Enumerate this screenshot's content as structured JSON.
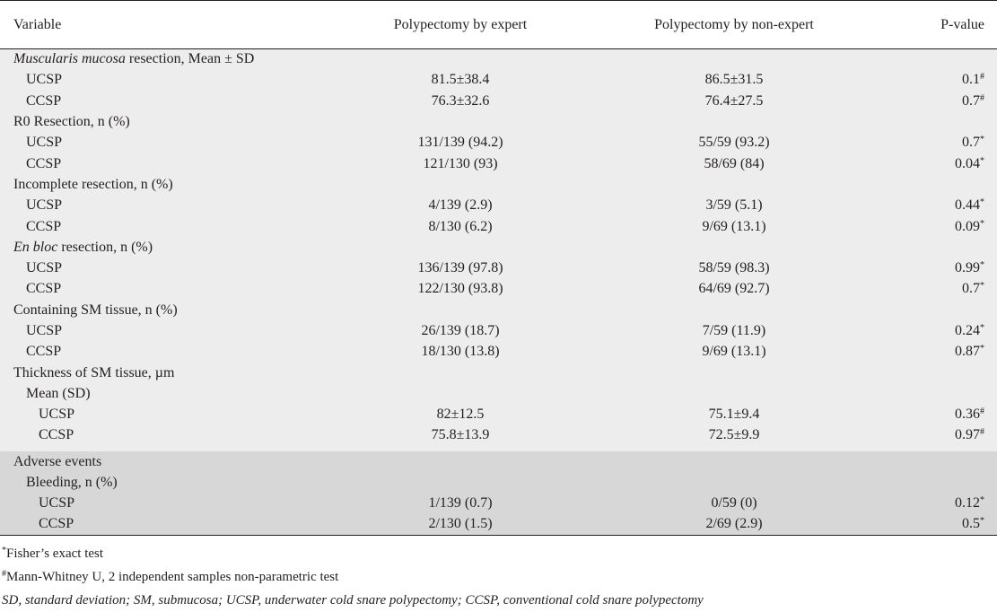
{
  "table": {
    "headers": [
      "Variable",
      "Polypectomy by expert",
      "Polypectomy by non-expert",
      "P-value"
    ],
    "outcome_sections": [
      {
        "title_italic": "Muscularis mucosa",
        "title_rest": " resection, Mean ± SD",
        "rows": [
          {
            "label": "UCSP",
            "expert": "81.5±38.4",
            "nonexpert": "86.5±31.5",
            "p": "0.1",
            "mark": "#"
          },
          {
            "label": "CCSP",
            "expert": "76.3±32.6",
            "nonexpert": "76.4±27.5",
            "p": "0.7",
            "mark": "#"
          }
        ]
      },
      {
        "title_italic": "",
        "title_rest": "R0 Resection, n (%)",
        "rows": [
          {
            "label": "UCSP",
            "expert": "131/139 (94.2)",
            "nonexpert": "55/59 (93.2)",
            "p": "0.7",
            "mark": "*"
          },
          {
            "label": "CCSP",
            "expert": "121/130 (93)",
            "nonexpert": "58/69 (84)",
            "p": "0.04",
            "mark": "*"
          }
        ]
      },
      {
        "title_italic": "",
        "title_rest": "Incomplete resection, n (%)",
        "rows": [
          {
            "label": "UCSP",
            "expert": "4/139 (2.9)",
            "nonexpert": "3/59 (5.1)",
            "p": "0.44",
            "mark": "*"
          },
          {
            "label": "CCSP",
            "expert": "8/130 (6.2)",
            "nonexpert": "9/69 (13.1)",
            "p": "0.09",
            "mark": "*"
          }
        ]
      },
      {
        "title_italic": "En bloc",
        "title_rest": " resection, n (%)",
        "rows": [
          {
            "label": "UCSP",
            "expert": "136/139 (97.8)",
            "nonexpert": "58/59 (98.3)",
            "p": "0.99",
            "mark": "*"
          },
          {
            "label": "CCSP",
            "expert": "122/130 (93.8)",
            "nonexpert": "64/69 (92.7)",
            "p": "0.7",
            "mark": "*"
          }
        ]
      },
      {
        "title_italic": "",
        "title_rest": "Containing SM tissue, n (%)",
        "rows": [
          {
            "label": "UCSP",
            "expert": "26/139 (18.7)",
            "nonexpert": "7/59 (11.9)",
            "p": "0.24",
            "mark": "*"
          },
          {
            "label": "CCSP",
            "expert": "18/130 (13.8)",
            "nonexpert": "9/69 (13.1)",
            "p": "0.87",
            "mark": "*"
          }
        ]
      }
    ],
    "thickness": {
      "title": "Thickness of SM tissue, µm",
      "subtitle": "Mean (SD)",
      "rows": [
        {
          "label": "UCSP",
          "expert": "82±12.5",
          "nonexpert": "75.1±9.4",
          "p": "0.36",
          "mark": "#"
        },
        {
          "label": "CCSP",
          "expert": "75.8±13.9",
          "nonexpert": "72.5±9.9",
          "p": "0.97",
          "mark": "#"
        }
      ]
    },
    "adverse": {
      "title": "Adverse events",
      "subtitle": "Bleeding, n (%)",
      "rows": [
        {
          "label": "UCSP",
          "expert": "1/139 (0.7)",
          "nonexpert": "0/59 (0)",
          "p": "0.12",
          "mark": "*"
        },
        {
          "label": "CCSP",
          "expert": "2/130 (1.5)",
          "nonexpert": "2/69 (2.9)",
          "p": "0.5",
          "mark": "*"
        }
      ]
    }
  },
  "footnotes": {
    "fisher_mark": "*",
    "fisher": "Fisher’s exact test",
    "mann_mark": "#",
    "mann": "Mann-Whitney U, 2 independent samples non-parametric test",
    "abbreviations": "SD, standard deviation; SM, submucosa; UCSP, underwater cold snare polypectomy; CCSP, conventional cold snare polypectomy"
  }
}
